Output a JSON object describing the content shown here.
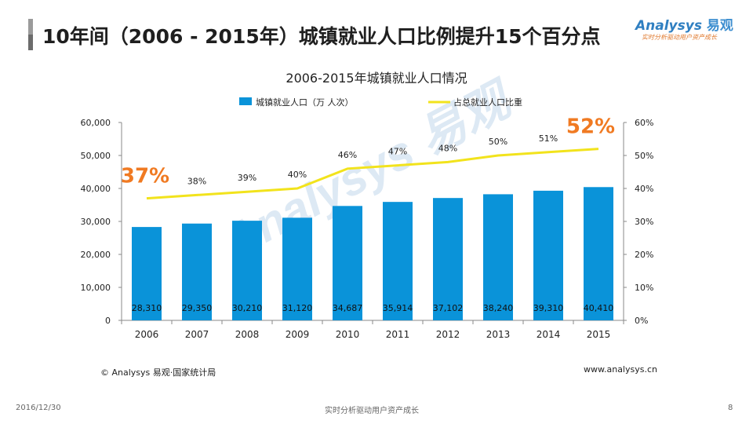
{
  "slide": {
    "title": "10年间（2006 - 2015年）城镇就业人口比例提升15个百分点",
    "date": "2016/12/30",
    "tagline": "实时分析驱动用户资产成长",
    "page_number": "8"
  },
  "brand": {
    "name": "Analysys",
    "name_cn": "易观",
    "tagline": "实时分析驱动用户资产成长"
  },
  "source": "© Analysys 易观·国家统计局",
  "website": "www.analysys.cn",
  "watermark": "Analysys 易观",
  "colors": {
    "bar": "#0a93d9",
    "line": "#f2e31c",
    "highlight": "#f07a22"
  },
  "chart_data": {
    "type": "bar",
    "title": "2006-2015年城镇就业人口情况",
    "categories": [
      "2006",
      "2007",
      "2008",
      "2009",
      "2010",
      "2011",
      "2012",
      "2013",
      "2014",
      "2015"
    ],
    "series": [
      {
        "name": "城镇就业人口（万 人次）",
        "type": "bar",
        "axis": "left",
        "values": [
          28310,
          29350,
          30210,
          31120,
          34687,
          35914,
          37102,
          38240,
          39310,
          40410
        ],
        "labels": [
          "28,310",
          "29,350",
          "30,210",
          "31,120",
          "34,687",
          "35,914",
          "37,102",
          "38,240",
          "39,310",
          "40,410"
        ]
      },
      {
        "name": "占总就业人口比重",
        "type": "line",
        "axis": "right",
        "values": [
          37,
          38,
          39,
          40,
          46,
          47,
          48,
          50,
          51,
          52
        ],
        "labels": [
          "37%",
          "38%",
          "39%",
          "40%",
          "46%",
          "47%",
          "48%",
          "50%",
          "51%",
          "52%"
        ]
      }
    ],
    "y_left": {
      "min": 0,
      "max": 60000,
      "ticks": [
        "0",
        "10,000",
        "20,000",
        "30,000",
        "40,000",
        "50,000",
        "60,000"
      ]
    },
    "y_right": {
      "min": 0,
      "max": 60,
      "ticks": [
        "0%",
        "10%",
        "20%",
        "30%",
        "40%",
        "50%",
        "60%"
      ]
    },
    "highlighted_labels": [
      "37%",
      "52%"
    ],
    "legend_position": "top-center",
    "grid": false
  }
}
